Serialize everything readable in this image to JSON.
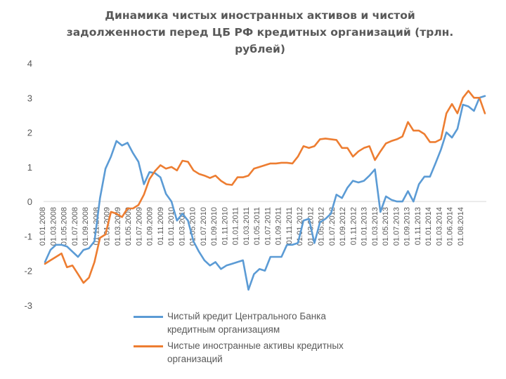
{
  "chart_data": {
    "type": "line",
    "title": "Динамика чистых иностранных активов и чистой задолженности перед ЦБ РФ кредитных организаций (трлн. рублей)",
    "title_lines": [
      "Динамика чистых иностранных активов и чистой",
      "задолженности перед ЦБ РФ кредитных организаций (трлн.",
      "рублей)"
    ],
    "ylim": [
      -3,
      4
    ],
    "yticks": [
      "4",
      "3",
      "2",
      "1",
      "0",
      "-1",
      "-2",
      "-3"
    ],
    "ytick_values": [
      4,
      3,
      2,
      1,
      0,
      -1,
      -2,
      -3
    ],
    "grid": true,
    "legend_position": "bottom",
    "x_tick_labels": [
      "01.01.2008",
      "01.03.2008",
      "01.05.2008",
      "01.07.2008",
      "01.09.2008",
      "01.11.2008",
      "01.01.2009",
      "01.03.2009",
      "01.05.2009",
      "01.07.2009",
      "01.09.2009",
      "01.11.2009",
      "01.01.2010",
      "01.03.2010",
      "01.05.2010",
      "01.07.2010",
      "01.09.2010",
      "01.11.2010",
      "01.01.2011",
      "01.03.2011",
      "01.05.2011",
      "01.07.2011",
      "01.09.2011",
      "01.11.2011",
      "01.01.2012",
      "01.03.2012",
      "01.05.2012",
      "01.07.2012",
      "01.09.2012",
      "01.11.2012",
      "01.01.2013",
      "01.03.2013",
      "01.05.2013",
      "01.07.2013",
      "01.09.2013",
      "01.11.2013",
      "01.01.2014",
      "01.03.2014",
      "01.06.2014",
      "01.08.2014"
    ],
    "series": [
      {
        "name": "Чистый кредит Центрального Банка кредитным организациям",
        "name_lines": [
          "Чистый кредит Центрального Банка",
          "кредитным организациям"
        ],
        "color": "#5b9bd5",
        "values": [
          -1.75,
          -1.4,
          -1.25,
          -1.25,
          -1.3,
          -1.45,
          -1.6,
          -1.4,
          -1.35,
          -1.15,
          0.1,
          0.95,
          1.3,
          1.75,
          1.62,
          1.7,
          1.4,
          1.15,
          0.5,
          0.85,
          0.82,
          0.7,
          0.22,
          0.0,
          -0.55,
          -0.35,
          -0.55,
          -1.15,
          -1.45,
          -1.7,
          -1.85,
          -1.75,
          -1.95,
          -1.85,
          -1.8,
          -1.75,
          -1.7,
          -2.55,
          -2.1,
          -1.95,
          -2.0,
          -1.6,
          -1.6,
          -1.6,
          -1.25,
          -1.25,
          -1.2,
          -0.55,
          -0.5,
          -1.2,
          -0.6,
          -0.5,
          -0.35,
          0.2,
          0.1,
          0.4,
          0.6,
          0.55,
          0.6,
          0.75,
          0.93,
          -0.3,
          0.15,
          0.05,
          0.0,
          0.0,
          0.3,
          0.0,
          0.5,
          0.72,
          0.72,
          1.1,
          1.5,
          2.0,
          1.85,
          2.1,
          2.8,
          2.75,
          2.62,
          3.0,
          3.05
        ]
      },
      {
        "name": "Чистые иностранные активы кредитных организаций",
        "name_lines": [
          "Чистые иностранные активы кредитных",
          "организаций"
        ],
        "color": "#ed7d31",
        "values": [
          -1.8,
          -1.7,
          -1.6,
          -1.5,
          -1.9,
          -1.85,
          -2.1,
          -2.35,
          -2.2,
          -1.75,
          -1.05,
          -0.95,
          -0.3,
          -0.35,
          -0.45,
          -0.2,
          -0.2,
          -0.1,
          0.2,
          0.65,
          0.88,
          1.05,
          0.95,
          1.0,
          0.9,
          1.18,
          1.15,
          0.9,
          0.8,
          0.75,
          0.68,
          0.75,
          0.6,
          0.5,
          0.48,
          0.7,
          0.7,
          0.75,
          0.95,
          1.0,
          1.05,
          1.1,
          1.1,
          1.12,
          1.12,
          1.1,
          1.3,
          1.6,
          1.55,
          1.6,
          1.8,
          1.82,
          1.8,
          1.78,
          1.55,
          1.55,
          1.3,
          1.45,
          1.55,
          1.6,
          1.2,
          1.45,
          1.68,
          1.75,
          1.8,
          1.88,
          2.3,
          2.05,
          2.05,
          1.95,
          1.72,
          1.72,
          1.8,
          2.55,
          2.82,
          2.55,
          3.0,
          3.2,
          3.0,
          3.0,
          2.55
        ]
      }
    ]
  }
}
